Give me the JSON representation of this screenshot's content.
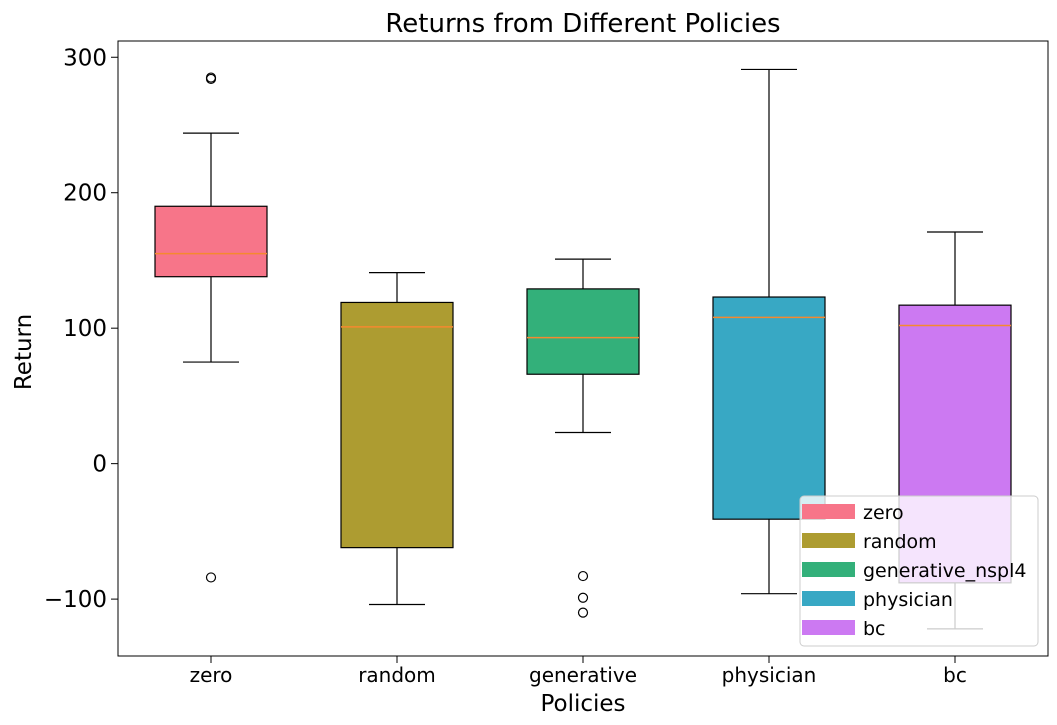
{
  "chart_data": {
    "type": "box",
    "title": "Returns from Different Policies",
    "xlabel": "Policies",
    "ylabel": "Return",
    "ylim": [
      -142,
      312
    ],
    "yticks": [
      300,
      200,
      100,
      0,
      -100
    ],
    "ytick_labels": [
      "300",
      "200",
      "100",
      "0",
      "−100"
    ],
    "grid": false,
    "legend_position": "lower-right",
    "median_color": "#f5892f",
    "boxes": [
      {
        "category": "zero",
        "color": "#f77589",
        "q1": 138,
        "median": 155,
        "q3": 190,
        "whisker_low": 75,
        "whisker_high": 244,
        "outliers": [
          285,
          284,
          -84
        ]
      },
      {
        "category": "random",
        "color": "#ad9c31",
        "q1": -62,
        "median": 101,
        "q3": 119,
        "whisker_low": -104,
        "whisker_high": 141,
        "outliers": []
      },
      {
        "category": "generative",
        "color": "#33b07a",
        "q1": 66,
        "median": 93,
        "q3": 129,
        "whisker_low": 23,
        "whisker_high": 151,
        "outliers": [
          -83,
          -99,
          -110
        ]
      },
      {
        "category": "physician",
        "color": "#38a8c4",
        "q1": -41,
        "median": 108,
        "q3": 123,
        "whisker_low": -96,
        "whisker_high": 291,
        "outliers": []
      },
      {
        "category": "bc",
        "color": "#cc79f2",
        "q1": -88,
        "median": 102,
        "q3": 117,
        "whisker_low": -122,
        "whisker_high": 171,
        "outliers": []
      }
    ],
    "legend": [
      {
        "label": "zero",
        "color": "#f77589"
      },
      {
        "label": "random",
        "color": "#ad9c31"
      },
      {
        "label": "generative_nspl4",
        "color": "#33b07a"
      },
      {
        "label": "physician",
        "color": "#38a8c4"
      },
      {
        "label": "bc",
        "color": "#cc79f2"
      }
    ]
  }
}
